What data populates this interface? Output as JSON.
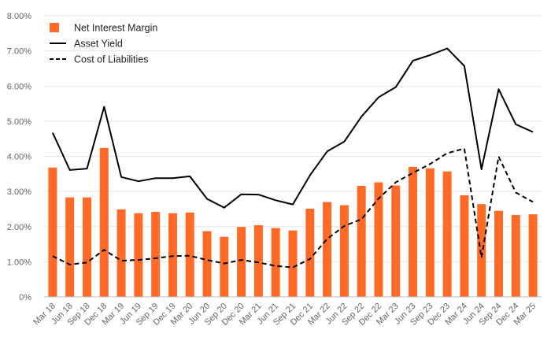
{
  "chart_data": {
    "type": "bar",
    "title": "",
    "xlabel": "",
    "ylabel": "",
    "ylim": [
      0,
      8
    ],
    "yticks": [
      "0%",
      "1.00%",
      "2.00%",
      "3.00%",
      "4.00%",
      "5.00%",
      "6.00%",
      "7.00%",
      "8.00%"
    ],
    "grid": true,
    "legend_position": "top-left",
    "categories": [
      "Mar 18",
      "Jun 18",
      "Sep 18",
      "Dec 18",
      "Mar 19",
      "Jun 19",
      "Sep 19",
      "Dec 19",
      "Mar 20",
      "Jun 20",
      "Sep 20",
      "Dec 20",
      "Mar 21",
      "Jun 21",
      "Sep 21",
      "Dec 21",
      "Mar 22",
      "Jun 22",
      "Sep 22",
      "Dec 22",
      "Mar 23",
      "Jun 23",
      "Sep 23",
      "Dec 23",
      "Mar 24",
      "Jun 24",
      "Sep 24",
      "Dec 24",
      "Mar 25"
    ],
    "series": [
      {
        "name": "Net Interest Margin",
        "type": "bar",
        "color": "#FF6A26",
        "values": [
          3.68,
          2.83,
          2.83,
          4.24,
          2.49,
          2.38,
          2.42,
          2.38,
          2.4,
          1.87,
          1.71,
          1.99,
          2.04,
          1.96,
          1.89,
          2.51,
          2.7,
          2.61,
          3.16,
          3.26,
          3.17,
          3.7,
          3.66,
          3.57,
          2.89,
          2.64,
          2.45,
          2.33,
          2.35
        ]
      },
      {
        "name": "Asset Yield",
        "type": "line",
        "style": "solid",
        "color": "#000000",
        "values": [
          4.67,
          3.61,
          3.65,
          5.41,
          3.41,
          3.29,
          3.38,
          3.38,
          3.43,
          2.79,
          2.54,
          2.92,
          2.91,
          2.75,
          2.63,
          3.46,
          4.14,
          4.42,
          5.13,
          5.68,
          5.97,
          6.72,
          6.88,
          7.07,
          6.57,
          3.63,
          5.91,
          4.91,
          4.69
        ]
      },
      {
        "name": "Cost of Liabilities",
        "type": "line",
        "style": "dashed",
        "color": "#000000",
        "values": [
          1.16,
          0.92,
          0.98,
          1.34,
          1.03,
          1.05,
          1.1,
          1.16,
          1.17,
          1.05,
          0.95,
          1.05,
          0.98,
          0.88,
          0.84,
          1.08,
          1.65,
          2.02,
          2.21,
          2.8,
          3.26,
          3.53,
          3.78,
          4.09,
          4.22,
          1.12,
          3.99,
          2.97,
          2.7
        ]
      }
    ]
  }
}
